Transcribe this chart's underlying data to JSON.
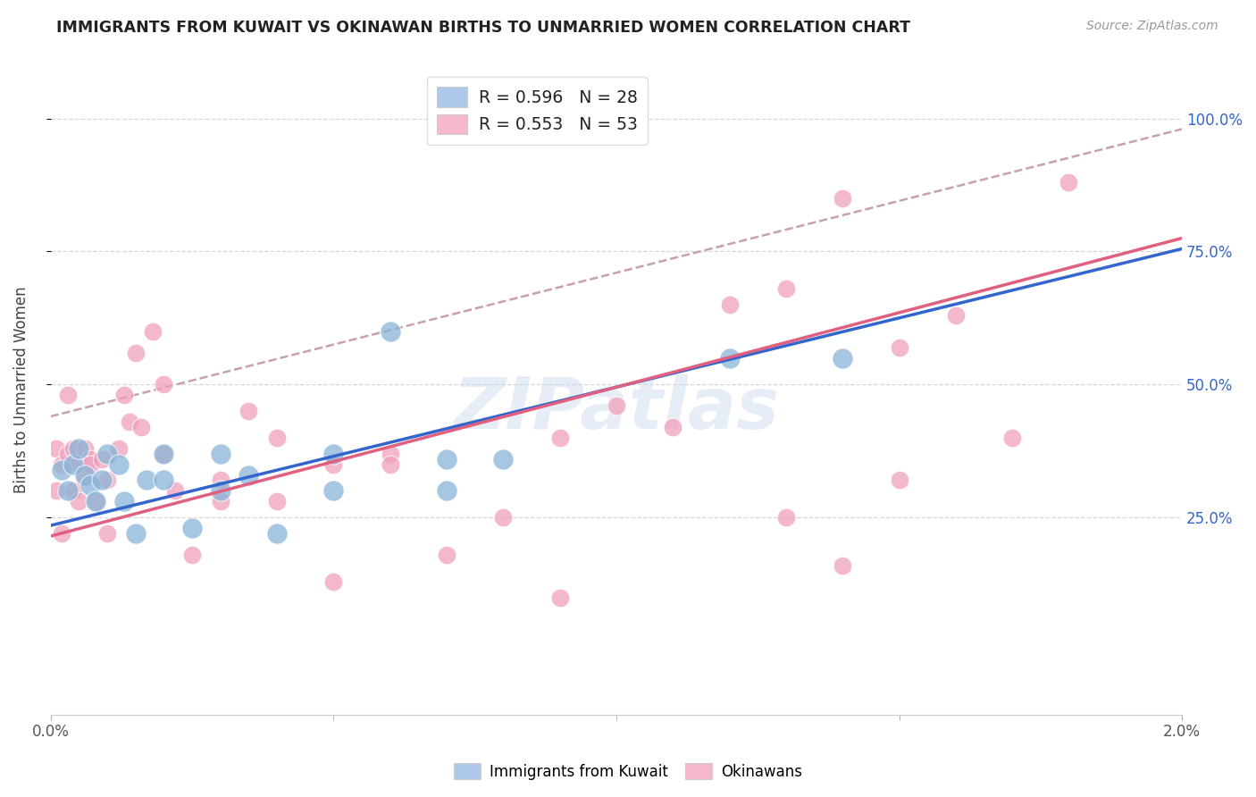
{
  "title": "IMMIGRANTS FROM KUWAIT VS OKINAWAN BIRTHS TO UNMARRIED WOMEN CORRELATION CHART",
  "source": "Source: ZipAtlas.com",
  "ylabel": "Births to Unmarried Women",
  "ytick_vals": [
    0.25,
    0.5,
    0.75,
    1.0
  ],
  "ytick_labels": [
    "25.0%",
    "50.0%",
    "75.0%",
    "100.0%"
  ],
  "legend1_label": "R = 0.596   N = 28",
  "legend2_label": "R = 0.553   N = 53",
  "legend_color_blue": "#adc8e8",
  "legend_color_pink": "#f5b8cc",
  "color_blue": "#8ab4d8",
  "color_pink": "#f0a0bc",
  "line_blue": "#3366cc",
  "line_pink": "#e06080",
  "line_dashed_color": "#c8a0b0",
  "watermark": "ZIPatlas",
  "blue_points_x": [
    0.0002,
    0.0003,
    0.0004,
    0.0005,
    0.0006,
    0.0007,
    0.0008,
    0.0009,
    0.001,
    0.0012,
    0.0013,
    0.0015,
    0.0017,
    0.002,
    0.002,
    0.0025,
    0.003,
    0.003,
    0.0035,
    0.004,
    0.005,
    0.005,
    0.006,
    0.007,
    0.007,
    0.008,
    0.012,
    0.014
  ],
  "blue_points_y": [
    0.34,
    0.3,
    0.35,
    0.38,
    0.33,
    0.31,
    0.28,
    0.32,
    0.37,
    0.35,
    0.28,
    0.22,
    0.32,
    0.32,
    0.37,
    0.23,
    0.3,
    0.37,
    0.33,
    0.22,
    0.37,
    0.3,
    0.6,
    0.36,
    0.3,
    0.36,
    0.55,
    0.55
  ],
  "pink_points_x": [
    0.0001,
    0.0001,
    0.0002,
    0.0002,
    0.0003,
    0.0003,
    0.0004,
    0.0004,
    0.0005,
    0.0005,
    0.0006,
    0.0006,
    0.0007,
    0.0007,
    0.0008,
    0.0009,
    0.001,
    0.001,
    0.0012,
    0.0013,
    0.0014,
    0.0015,
    0.0016,
    0.0018,
    0.002,
    0.002,
    0.0022,
    0.0025,
    0.003,
    0.003,
    0.0035,
    0.004,
    0.004,
    0.005,
    0.005,
    0.006,
    0.006,
    0.007,
    0.008,
    0.009,
    0.009,
    0.01,
    0.011,
    0.012,
    0.013,
    0.014,
    0.015,
    0.016,
    0.017,
    0.018,
    0.013,
    0.014,
    0.015
  ],
  "pink_points_y": [
    0.38,
    0.3,
    0.35,
    0.22,
    0.48,
    0.37,
    0.38,
    0.3,
    0.35,
    0.28,
    0.33,
    0.38,
    0.36,
    0.35,
    0.28,
    0.36,
    0.32,
    0.22,
    0.38,
    0.48,
    0.43,
    0.56,
    0.42,
    0.6,
    0.5,
    0.37,
    0.3,
    0.18,
    0.28,
    0.32,
    0.45,
    0.4,
    0.28,
    0.35,
    0.13,
    0.37,
    0.35,
    0.18,
    0.25,
    0.4,
    0.1,
    0.46,
    0.42,
    0.65,
    0.68,
    0.85,
    0.57,
    0.63,
    0.4,
    0.88,
    0.25,
    0.16,
    0.32
  ],
  "xlim": [
    0,
    0.02
  ],
  "ylim": [
    -0.12,
    1.1
  ],
  "blue_line_x": [
    0,
    0.02
  ],
  "blue_line_y": [
    0.235,
    0.755
  ],
  "pink_line_x": [
    0,
    0.02
  ],
  "pink_line_y": [
    0.215,
    0.775
  ],
  "dashed_line_x": [
    0.0,
    0.02
  ],
  "dashed_line_y": [
    0.44,
    0.98
  ],
  "xtick_positions": [
    0.0,
    0.02
  ],
  "xtick_labels": [
    "0.0%",
    "2.0%"
  ],
  "xtick_minor_positions": [
    0.005,
    0.01,
    0.015
  ],
  "bottom_legend_labels": [
    "Immigrants from Kuwait",
    "Okinawans"
  ]
}
